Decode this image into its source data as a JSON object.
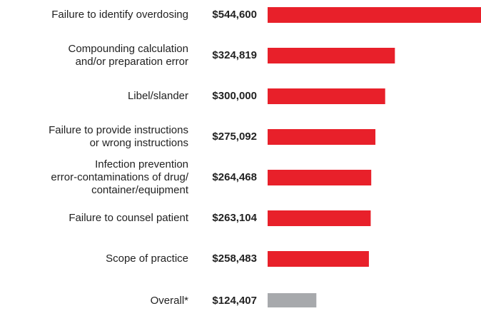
{
  "chart_data": {
    "type": "bar",
    "orientation": "horizontal",
    "categories": [
      "Failure to identify overdosing",
      "Compounding calculation\nand/or preparation error",
      "Libel/slander",
      "Failure to provide instructions\nor wrong instructions",
      "Infection prevention\nerror-contaminations of drug/\ncontainer/equipment",
      "Failure to counsel patient",
      "Scope of practice",
      "Overall*"
    ],
    "values": [
      544600,
      324819,
      300000,
      275092,
      264468,
      263104,
      258483,
      124407
    ],
    "value_labels": [
      "$544,600",
      "$324,819",
      "$300,000",
      "$275,092",
      "$264,468",
      "$263,104",
      "$258,483",
      "$124,407"
    ],
    "colors": [
      "#e8202a",
      "#e8202a",
      "#e8202a",
      "#e8202a",
      "#e8202a",
      "#e8202a",
      "#e8202a",
      "#a7a9ac"
    ]
  }
}
